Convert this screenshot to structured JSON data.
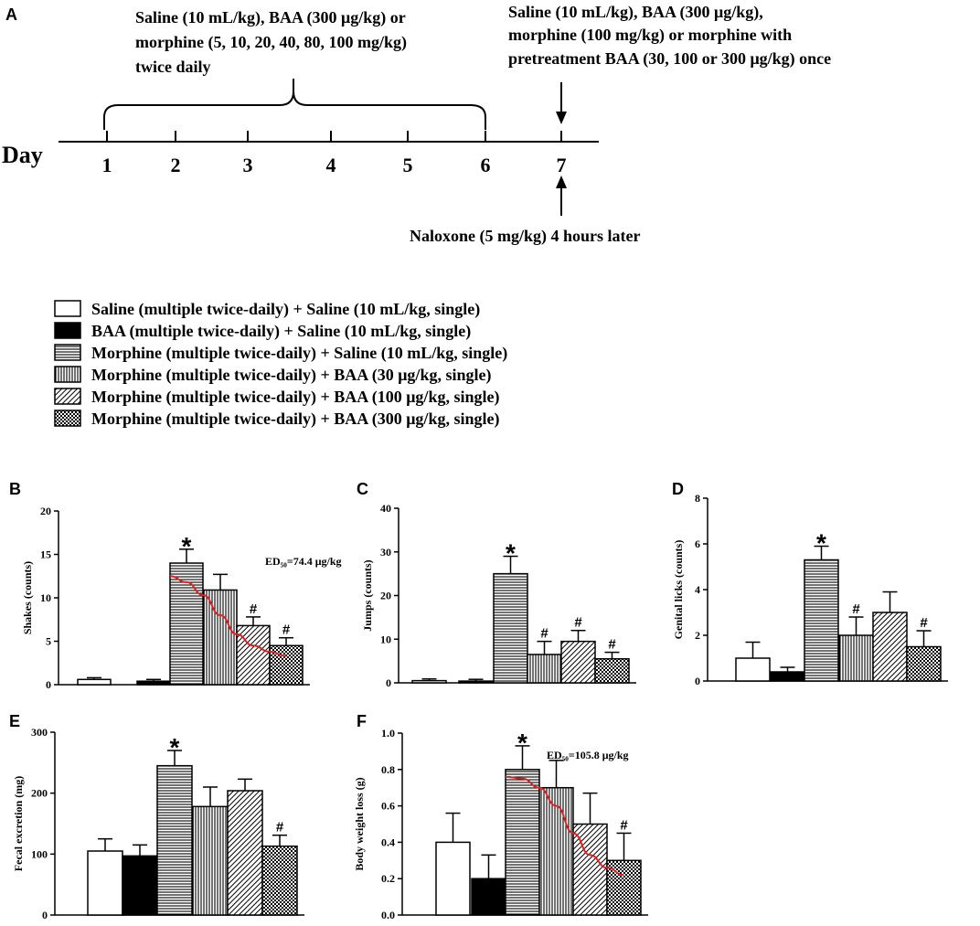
{
  "panel_letters": {
    "A": "A",
    "B": "B",
    "C": "C",
    "D": "D",
    "E": "E",
    "F": "F"
  },
  "timeline": {
    "day_label": "Day",
    "days": [
      "1",
      "2",
      "3",
      "4",
      "5",
      "6",
      "7"
    ],
    "treatment_left": [
      "Saline (10 mL/kg), BAA (300 μg/kg) or",
      "morphine (5, 10, 20, 40, 80, 100 mg/kg)",
      "twice daily"
    ],
    "treatment_right": [
      "Saline (10 mL/kg), BAA (300 μg/kg),",
      "morphine (100 mg/kg) or morphine with",
      "pretreatment BAA (30, 100 or 300 μg/kg) once"
    ],
    "naloxone": "Naloxone (5 mg/kg) 4 hours later"
  },
  "legend": [
    {
      "label": "Saline (multiple twice-daily) + Saline (10 mL/kg, single)",
      "pattern": "white"
    },
    {
      "label": "BAA (multiple twice-daily) + Saline (10 mL/kg, single)",
      "pattern": "black"
    },
    {
      "label": "Morphine (multiple twice-daily) + Saline (10 mL/kg, single)",
      "pattern": "hlines"
    },
    {
      "label": "Morphine (multiple twice-daily) + BAA (30 μg/kg, single)",
      "pattern": "vlines"
    },
    {
      "label": "Morphine (multiple twice-daily) + BAA (100 μg/kg, single)",
      "pattern": "diag"
    },
    {
      "label": "Morphine (multiple twice-daily) + BAA (300 μg/kg, single)",
      "pattern": "check"
    }
  ],
  "chart_data": [
    {
      "panel": "B",
      "type": "bar",
      "ylabel": "Shakes (counts)",
      "ylim": [
        0,
        20
      ],
      "yticks": [
        0,
        5,
        10,
        15,
        20
      ],
      "values": [
        0.6,
        0.4,
        14.0,
        10.9,
        6.8,
        4.5
      ],
      "errors": [
        0.2,
        0.2,
        1.6,
        1.8,
        1.0,
        0.9
      ],
      "marks": [
        "",
        "",
        "*",
        "",
        "#",
        "#"
      ],
      "annotation": "ED₅₀=74.4 μg/kg",
      "curve": [
        [
          2.5,
          12.5
        ],
        [
          3.0,
          11.8
        ],
        [
          3.5,
          10.3
        ],
        [
          4.0,
          8.0
        ],
        [
          4.5,
          5.8
        ],
        [
          5.0,
          4.5
        ],
        [
          5.5,
          3.8
        ],
        [
          6.0,
          3.3
        ]
      ]
    },
    {
      "panel": "C",
      "type": "bar",
      "ylabel": "Jumps (counts)",
      "ylim": [
        0,
        40
      ],
      "yticks": [
        0,
        10,
        20,
        30,
        40
      ],
      "values": [
        0.5,
        0.4,
        25.0,
        6.5,
        9.5,
        5.5
      ],
      "errors": [
        0.4,
        0.4,
        4.0,
        3.0,
        2.5,
        1.5
      ],
      "marks": [
        "",
        "",
        "*",
        "#",
        "#",
        "#"
      ]
    },
    {
      "panel": "D",
      "type": "bar",
      "ylabel": "Genital licks (counts)",
      "ylim": [
        0,
        8
      ],
      "yticks": [
        0,
        2,
        4,
        6,
        8
      ],
      "values": [
        1.0,
        0.4,
        5.3,
        2.0,
        3.0,
        1.5
      ],
      "errors": [
        0.7,
        0.2,
        0.6,
        0.8,
        0.9,
        0.7
      ],
      "marks": [
        "",
        "",
        "*",
        "#",
        "",
        "#"
      ]
    },
    {
      "panel": "E",
      "type": "bar",
      "ylabel": "Fecal excretion (mg)",
      "ylim": [
        0,
        300
      ],
      "yticks": [
        0,
        100,
        200,
        300
      ],
      "values": [
        105,
        97,
        245,
        178,
        204,
        113
      ],
      "errors": [
        20,
        18,
        25,
        32,
        19,
        18
      ],
      "marks": [
        "",
        "",
        "*",
        "",
        "",
        "#"
      ]
    },
    {
      "panel": "F",
      "type": "bar",
      "ylabel": "Body weight loss (g)",
      "ylim": [
        0,
        1.0
      ],
      "yticks": [
        0.0,
        0.2,
        0.4,
        0.6,
        0.8,
        1.0
      ],
      "values": [
        0.4,
        0.2,
        0.8,
        0.7,
        0.5,
        0.3
      ],
      "errors": [
        0.16,
        0.13,
        0.13,
        0.15,
        0.17,
        0.15
      ],
      "marks": [
        "",
        "",
        "*",
        "",
        "",
        "#"
      ],
      "annotation": "ED₅₀=105.8 μg/kg",
      "curve": [
        [
          2.5,
          0.76
        ],
        [
          3.0,
          0.75
        ],
        [
          3.5,
          0.7
        ],
        [
          4.0,
          0.6
        ],
        [
          4.5,
          0.45
        ],
        [
          5.0,
          0.33
        ],
        [
          5.5,
          0.26
        ],
        [
          6.0,
          0.22
        ]
      ]
    }
  ]
}
